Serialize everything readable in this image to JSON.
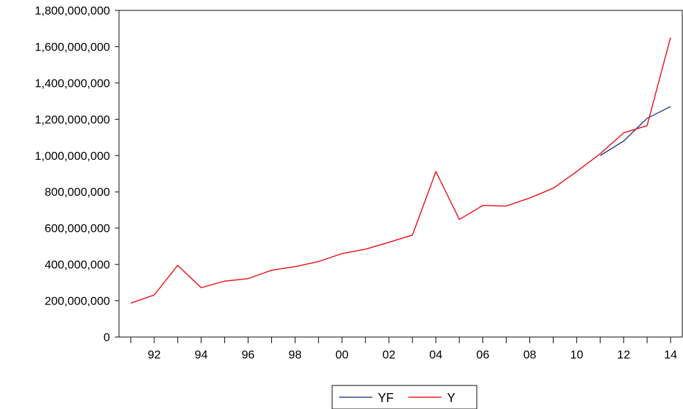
{
  "chart_data": {
    "type": "line",
    "title": "",
    "xlabel": "",
    "ylabel": "",
    "xlim": [
      1990.5,
      2014.5
    ],
    "ylim": [
      0,
      1800000000
    ],
    "x_ticks": [
      {
        "x": 1992,
        "label": "92"
      },
      {
        "x": 1994,
        "label": "94"
      },
      {
        "x": 1996,
        "label": "96"
      },
      {
        "x": 1998,
        "label": "98"
      },
      {
        "x": 2000,
        "label": "00"
      },
      {
        "x": 2002,
        "label": "02"
      },
      {
        "x": 2004,
        "label": "04"
      },
      {
        "x": 2006,
        "label": "06"
      },
      {
        "x": 2008,
        "label": "08"
      },
      {
        "x": 2010,
        "label": "10"
      },
      {
        "x": 2012,
        "label": "12"
      },
      {
        "x": 2014,
        "label": "14"
      }
    ],
    "y_ticks": [
      {
        "y": 0,
        "label": "0"
      },
      {
        "y": 200000000,
        "label": "200,000,000"
      },
      {
        "y": 400000000,
        "label": "400,000,000"
      },
      {
        "y": 600000000,
        "label": "600,000,000"
      },
      {
        "y": 800000000,
        "label": "800,000,000"
      },
      {
        "y": 1000000000,
        "label": "1,000,000,000"
      },
      {
        "y": 1200000000,
        "label": "1,200,000,000"
      },
      {
        "y": 1400000000,
        "label": "1,400,000,000"
      },
      {
        "y": 1600000000,
        "label": "1,600,000,000"
      },
      {
        "y": 1800000000,
        "label": "1,800,000,000"
      }
    ],
    "grid": false,
    "legend_position": "bottom-center",
    "series": [
      {
        "name": "YF",
        "color": "#2a3d8f",
        "x": [
          2011,
          2012,
          2013,
          2014
        ],
        "values": [
          1000000000,
          1080000000,
          1205000000,
          1270000000
        ]
      },
      {
        "name": "Y",
        "color": "#e8141c",
        "x": [
          1991,
          1992,
          1993,
          1994,
          1995,
          1996,
          1997,
          1998,
          1999,
          2000,
          2001,
          2002,
          2003,
          2004,
          2005,
          2006,
          2007,
          2008,
          2009,
          2010,
          2011,
          2012,
          2013,
          2014
        ],
        "values": [
          187000000,
          232000000,
          395000000,
          272000000,
          308000000,
          322000000,
          368000000,
          388000000,
          416000000,
          460000000,
          484000000,
          522000000,
          562000000,
          912000000,
          648000000,
          725000000,
          722000000,
          766000000,
          820000000,
          912000000,
          1010000000,
          1125000000,
          1165000000,
          1650000000
        ]
      }
    ]
  }
}
